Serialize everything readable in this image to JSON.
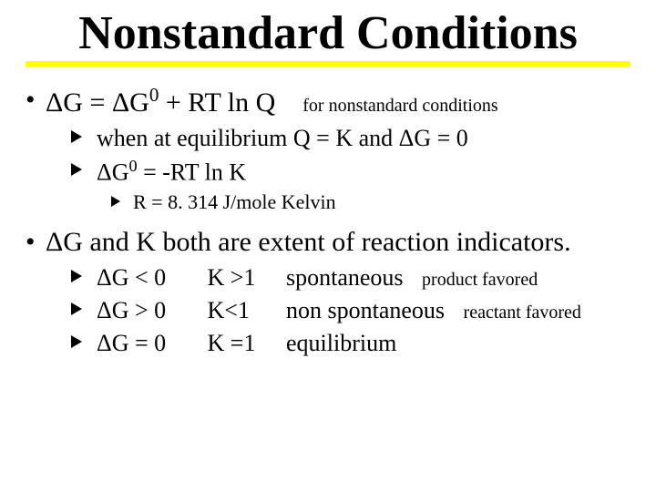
{
  "colors": {
    "underline": "#ffff00",
    "text": "#000000",
    "background": "#ffffff"
  },
  "typography": {
    "title_fontsize": 52,
    "l1_fontsize": 30,
    "l2_fontsize": 26,
    "l3_fontsize": 22,
    "annotation_fontsize": 20
  },
  "title": "Nonstandard Conditions",
  "b1": {
    "eq_lhs": "ΔG = ΔG",
    "eq_sup": "0",
    "eq_mid": " + RT ln Q",
    "eq_note": "for nonstandard conditions",
    "sub1": "when at equilibrium Q = K and ΔG = 0",
    "sub2_a": "ΔG",
    "sub2_sup": "0",
    "sub2_b": "  = -RT ln K",
    "sub3": "R = 8. 314 J/mole Kelvin"
  },
  "b2": {
    "line": "ΔG and K both are extent of reaction indicators.",
    "r1": {
      "dg": " ΔG < 0",
      "k": "K >1",
      "sp": "spontaneous",
      "note": "product favored"
    },
    "r2": {
      "dg": "ΔG > 0",
      "k": " K<1",
      "sp": "non spontaneous",
      "note": "reactant favored"
    },
    "r3": {
      "dg": "ΔG = 0",
      "k": "K =1",
      "sp": "equilibrium",
      "note": ""
    }
  }
}
